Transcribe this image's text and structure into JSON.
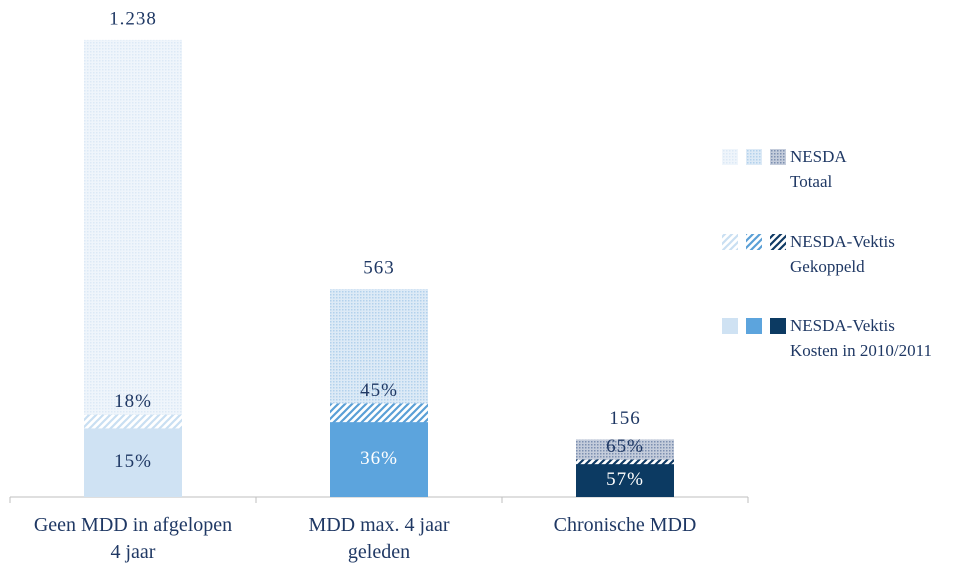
{
  "chart_data": {
    "type": "bar",
    "categories": [
      "Geen MDD in afgelopen\n4 jaar",
      "MDD max. 4 jaar\ngeleden",
      "Chronische MDD"
    ],
    "ylim": [
      0,
      1300
    ],
    "series": [
      {
        "name": "NESDA\nTotaal",
        "pattern": "dots",
        "colors": [
          "#dce9f6",
          "#b3d1ec",
          "#7d8fb0"
        ],
        "values": [
          1238,
          563,
          156
        ],
        "value_labels": [
          "1.238",
          "563",
          "156"
        ]
      },
      {
        "name": "NESDA-Vektis\nGekoppeld",
        "pattern": "stripes",
        "colors": [
          "#c9dff2",
          "#5a9fd6",
          "#0f3a64"
        ],
        "values": [
          18,
          45,
          65
        ],
        "value_labels": [
          "18%",
          "45%",
          "65%"
        ]
      },
      {
        "name": "NESDA-Vektis\nKosten in 2010/2011",
        "pattern": "solid",
        "colors": [
          "#cfe2f3",
          "#5ca4dd",
          "#0c3a62"
        ],
        "values": [
          15,
          36,
          57
        ],
        "value_labels": [
          "15%",
          "36%",
          "57%"
        ]
      }
    ]
  }
}
